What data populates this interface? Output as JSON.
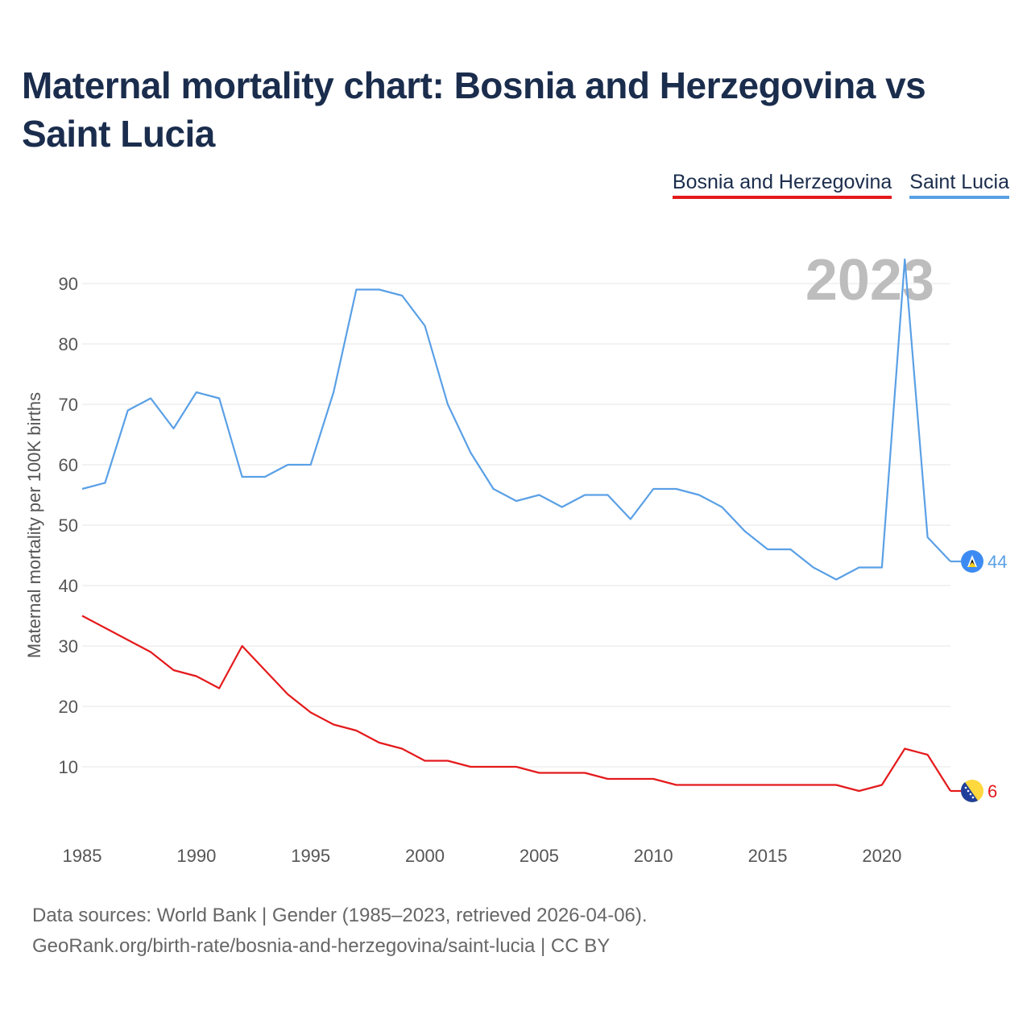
{
  "title": "Maternal mortality chart: Bosnia and Herzegovina vs Saint Lucia",
  "legend": {
    "bih": "Bosnia and Herzegovina",
    "lca": "Saint Lucia"
  },
  "footer": {
    "line1": "Data sources: World Bank | Gender (1985–2023, retrieved 2026-04-06).",
    "line2": "GeoRank.org/birth-rate/bosnia-and-herzegovina/saint-lucia | CC BY"
  },
  "colors": {
    "bih": "#e41a1c",
    "lca": "#5aa0e6",
    "grid": "#e6e6e6"
  },
  "chart_data": {
    "type": "line",
    "title": "Maternal mortality chart: Bosnia and Herzegovina vs Saint Lucia",
    "xlabel": "",
    "ylabel": "Maternal mortality per 100K births",
    "watermark": "2023",
    "xlim": [
      1985,
      2023
    ],
    "ylim": [
      0,
      95
    ],
    "xticks": [
      1985,
      1990,
      1995,
      2000,
      2005,
      2010,
      2015,
      2020
    ],
    "yticks": [
      10,
      20,
      30,
      40,
      50,
      60,
      70,
      80,
      90
    ],
    "grid": true,
    "legend_position": "top-right",
    "x": [
      1985,
      1986,
      1987,
      1988,
      1989,
      1990,
      1991,
      1992,
      1993,
      1994,
      1995,
      1996,
      1997,
      1998,
      1999,
      2000,
      2001,
      2002,
      2003,
      2004,
      2005,
      2006,
      2007,
      2008,
      2009,
      2010,
      2011,
      2012,
      2013,
      2014,
      2015,
      2016,
      2017,
      2018,
      2019,
      2020,
      2021,
      2022,
      2023
    ],
    "series": [
      {
        "name": "Saint Lucia",
        "key": "lca",
        "end_label": "44",
        "icon": "saint-lucia-flag-icon",
        "values": [
          56,
          57,
          69,
          71,
          66,
          72,
          71,
          58,
          58,
          60,
          60,
          72,
          89,
          89,
          88,
          83,
          70,
          62,
          56,
          54,
          55,
          53,
          55,
          55,
          51,
          56,
          56,
          55,
          53,
          49,
          46,
          46,
          43,
          41,
          43,
          43,
          94,
          48,
          44
        ]
      },
      {
        "name": "Bosnia and Herzegovina",
        "key": "bih",
        "end_label": "6",
        "icon": "bosnia-flag-icon",
        "values": [
          35,
          33,
          31,
          29,
          26,
          25,
          23,
          30,
          26,
          22,
          19,
          17,
          16,
          14,
          13,
          11,
          11,
          10,
          10,
          10,
          9,
          9,
          9,
          8,
          8,
          8,
          7,
          7,
          7,
          7,
          7,
          7,
          7,
          7,
          6,
          7,
          13,
          12,
          6
        ]
      }
    ]
  }
}
